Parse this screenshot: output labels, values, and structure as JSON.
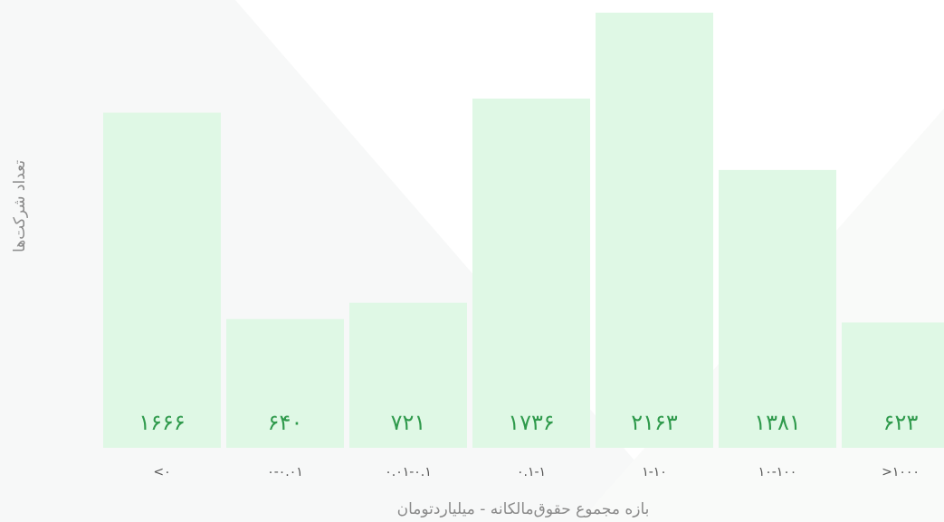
{
  "chart_data": {
    "type": "bar",
    "xlabel": "بازه مجموع حقوق‌مالکانه - میلیاردتومان",
    "ylabel": "تعداد شرکت‌ها",
    "categories": [
      "<۰",
      "۰-۰.۰۱",
      "۰.۰۱-۰.۱",
      "۰.۱-۱",
      "۱-۱۰",
      "۱۰-۱۰۰",
      ">۱۰۰۰"
    ],
    "values": [
      1666,
      640,
      721,
      1736,
      2163,
      1381,
      623
    ],
    "value_labels": [
      "۱۶۶۶",
      "۶۴۰",
      "۷۲۱",
      "۱۷۳۶",
      "۲۱۶۳",
      "۱۳۸۱",
      "۶۲۳"
    ],
    "color": "#dff8e5",
    "label_color": "#2f9a4c",
    "ylim": [
      0,
      2163
    ]
  }
}
